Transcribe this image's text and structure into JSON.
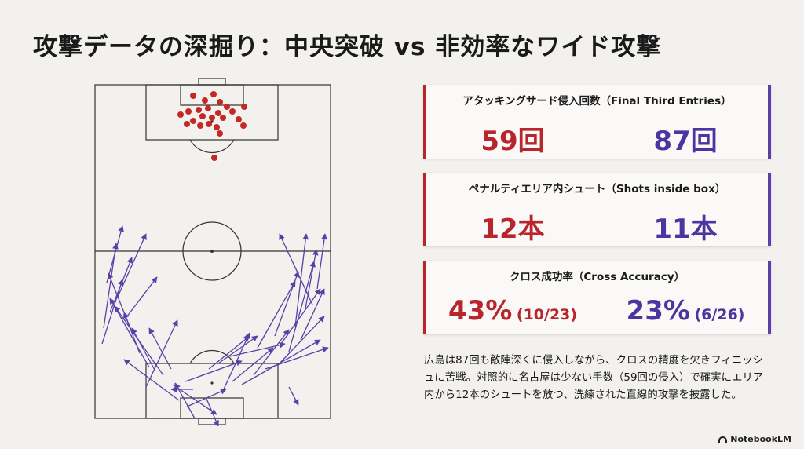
{
  "title": "攻撃データの深掘り：中央突破 vs 非効率なワイド攻撃",
  "colors": {
    "red": "#b8262b",
    "purple": "#5b3fa8",
    "background": "#f2f1ed"
  },
  "pitch": {
    "top_dots_color": "#c62828",
    "arrow_color": "#5b3fa8"
  },
  "stats": [
    {
      "title": "アタッキングサード侵入回数（Final Third Entries）",
      "left": "59回",
      "right": "87回"
    },
    {
      "title": "ペナルティエリア内シュート（Shots inside box）",
      "left": "12本",
      "right": "11本"
    },
    {
      "title": "クロス成功率（Cross Accuracy）",
      "left_main": "43%",
      "left_sub": "(10/23)",
      "right_main": "23%",
      "right_sub": "(6/26)"
    }
  ],
  "description": "広島は87回も敵陣深くに侵入しながら、クロスの精度を欠きフィニッシュに苦戦。対照的に名古屋は少ない手数（59回の侵入）で確実にエリア内から12本のシュートを放つ、洗練された直線的攻撃を披露した。",
  "brand": "NotebookLM"
}
